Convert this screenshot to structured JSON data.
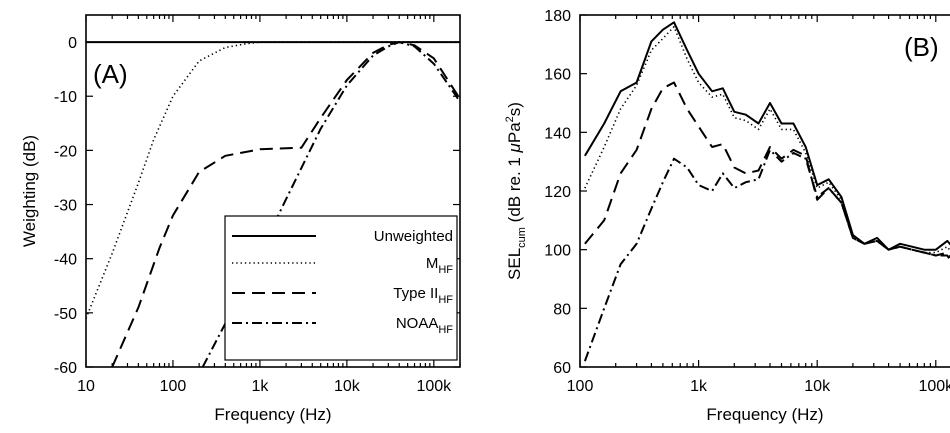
{
  "chart_data": [
    {
      "type": "line",
      "panel_label": "(A)",
      "xlabel": "Frequency (Hz)",
      "ylabel": "Weighting (dB)",
      "xscale": "log",
      "xlim": [
        10,
        200000
      ],
      "ylim": [
        -60,
        5
      ],
      "xticks": [
        10,
        100,
        1000,
        10000,
        100000
      ],
      "xtick_labels": [
        "10",
        "100",
        "1k",
        "10k",
        "100k"
      ],
      "yticks": [
        0,
        -10,
        -20,
        -30,
        -40,
        -50,
        -60
      ],
      "ytick_labels": [
        "0",
        "-10",
        "-20",
        "-30",
        "-40",
        "-50",
        "-60"
      ],
      "legend_position": "bottom-right",
      "grid": false,
      "series": [
        {
          "name": "Unweighted",
          "name_main": "Unweighted",
          "name_sub": "",
          "style": "solid",
          "x": [
            10,
            200000
          ],
          "y": [
            0,
            0
          ]
        },
        {
          "name": "M_HF",
          "name_main": "M",
          "name_sub": "HF",
          "style": "dotted",
          "x": [
            10,
            20,
            40,
            60,
            100,
            200,
            400,
            700,
            1000,
            200000
          ],
          "y": [
            -51,
            -39,
            -26,
            -18,
            -10,
            -3.5,
            -1,
            -0.3,
            0,
            0
          ]
        },
        {
          "name": "Type II_HF",
          "name_main": "Type II",
          "name_sub": "HF",
          "style": "dashed",
          "x": [
            20,
            40,
            70,
            100,
            200,
            400,
            1000,
            3000,
            5000,
            10000,
            20000,
            30000,
            40000,
            60000,
            100000,
            200000
          ],
          "y": [
            -60,
            -49,
            -38,
            -32,
            -24,
            -21,
            -19.8,
            -19.5,
            -14,
            -7,
            -2,
            -0.5,
            0,
            -0.6,
            -3,
            -10.5
          ]
        },
        {
          "name": "NOAA_HF",
          "name_main": "NOAA",
          "name_sub": "HF",
          "style": "dashdot",
          "x": [
            220,
            500,
            1000,
            2000,
            5000,
            10000,
            20000,
            30000,
            40000,
            60000,
            100000,
            200000
          ],
          "y": [
            -60,
            -49,
            -39,
            -29,
            -16,
            -8,
            -2.5,
            -0.8,
            0,
            -0.8,
            -4,
            -11
          ]
        }
      ]
    },
    {
      "type": "line",
      "panel_label": "(B)",
      "xlabel": "Frequency (Hz)",
      "ylabel_main": "SEL",
      "ylabel_sub": "cum",
      "ylabel_rest": " (dB re. 1 ",
      "ylabel_mu": "μ",
      "ylabel_pa": "Pa",
      "ylabel_sup": "2",
      "ylabel_end": "s)",
      "xscale": "log",
      "xlim": [
        100,
        160000
      ],
      "ylim": [
        60,
        180
      ],
      "xticks": [
        100,
        1000,
        10000,
        100000
      ],
      "xtick_labels": [
        "100",
        "1k",
        "10k",
        "100k"
      ],
      "yticks": [
        60,
        80,
        100,
        120,
        140,
        160,
        180
      ],
      "ytick_labels": [
        "60",
        "80",
        "100",
        "120",
        "140",
        "160",
        "180"
      ],
      "grid": false,
      "series": [
        {
          "name": "Unweighted",
          "style": "solid",
          "x": [
            110,
            160,
            220,
            300,
            400,
            500,
            620,
            800,
            1000,
            1300,
            1600,
            2000,
            2500,
            3200,
            4000,
            5000,
            6300,
            8000,
            10000,
            12500,
            16000,
            20000,
            25000,
            32000,
            40000,
            50000,
            63000,
            80000,
            100000,
            125000,
            160000
          ],
          "y": [
            132,
            143,
            154,
            157,
            171,
            175,
            177.5,
            168,
            160,
            154,
            155,
            147,
            146,
            143,
            150,
            143,
            143,
            135,
            122,
            124,
            118,
            105,
            102,
            104,
            100,
            102,
            101,
            100,
            100,
            103,
            98
          ]
        },
        {
          "name": "M_HF",
          "style": "dotted",
          "x": [
            110,
            160,
            220,
            300,
            400,
            500,
            620,
            800,
            1000,
            1300,
            1600,
            2000,
            2500,
            3200,
            4000,
            5000,
            6300,
            8000,
            10000,
            12500,
            16000,
            20000,
            25000,
            32000,
            40000,
            50000,
            63000,
            80000,
            100000,
            125000,
            160000
          ],
          "y": [
            121,
            135,
            148,
            156,
            168,
            172,
            176,
            165,
            157,
            152,
            153,
            145,
            144,
            141,
            148,
            141,
            141,
            133,
            121,
            123,
            117,
            104,
            102,
            103,
            100,
            101,
            100,
            99,
            99,
            101,
            95
          ]
        },
        {
          "name": "Type II_HF",
          "style": "dashed",
          "x": [
            110,
            160,
            220,
            300,
            400,
            500,
            620,
            800,
            1000,
            1300,
            1600,
            2000,
            2500,
            3200,
            4000,
            5000,
            6300,
            8000,
            10000,
            12500,
            16000,
            20000,
            25000,
            32000,
            40000,
            50000,
            63000,
            80000,
            100000,
            125000,
            160000
          ],
          "y": [
            102,
            110,
            126,
            134,
            148,
            155,
            157,
            148,
            142,
            135,
            136,
            128,
            126,
            127,
            135,
            131,
            134,
            132,
            117,
            121,
            116,
            104,
            102,
            103,
            100,
            101,
            100,
            99,
            98,
            99,
            93
          ]
        },
        {
          "name": "NOAA_HF",
          "style": "dashdot",
          "x": [
            110,
            160,
            220,
            300,
            400,
            500,
            620,
            800,
            1000,
            1300,
            1600,
            2000,
            2500,
            3200,
            4000,
            5000,
            6300,
            8000,
            10000,
            12500,
            16000,
            20000,
            25000,
            32000,
            40000,
            50000,
            63000,
            80000,
            100000,
            125000,
            160000
          ],
          "y": [
            62,
            80,
            95,
            102,
            114,
            123,
            131,
            128,
            122,
            120,
            126,
            121,
            123,
            124,
            134,
            130,
            133,
            131,
            118,
            121,
            116,
            104,
            102,
            103,
            100,
            101,
            100,
            99,
            98,
            98,
            91
          ]
        }
      ]
    }
  ]
}
